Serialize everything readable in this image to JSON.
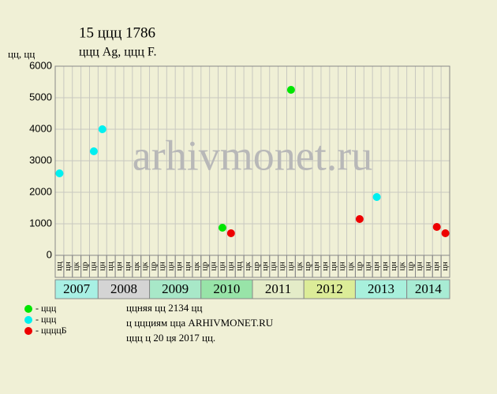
{
  "chart_data": {
    "type": "scatter",
    "title": "15 ццц 1786",
    "subtitle": "ццц Ag, ццц F.",
    "y_label": "цц, цц",
    "watermark": "arhivmonet.ru",
    "notes": [
      "ццняя цц 2134 цц",
      "ц ццциям цца ARHIVMONET.RU",
      "ццц ц 20 ця 2017 цц."
    ],
    "years": [
      {
        "label": "2007",
        "color": "#a8f0e4",
        "months": [
          "цц",
          "цн",
          "цк",
          "цр",
          "цн"
        ]
      },
      {
        "label": "2008",
        "color": "#d4d4d4",
        "months": [
          "цн",
          "цц",
          "цн",
          "цн",
          "цк",
          "цк"
        ]
      },
      {
        "label": "2009",
        "color": "#a8e8c8",
        "months": [
          "цр",
          "цн",
          "цн",
          "цн",
          "цн",
          "цк"
        ]
      },
      {
        "label": "2010",
        "color": "#98e4a8",
        "months": [
          "цр",
          "цн",
          "цн",
          "цн",
          "цц",
          "цк"
        ]
      },
      {
        "label": "2011",
        "color": "#e4ecc8",
        "months": [
          "цр",
          "цн",
          "цн",
          "цн",
          "цн",
          "цк"
        ]
      },
      {
        "label": "2012",
        "color": "#dcec98",
        "months": [
          "цр",
          "цн",
          "цн",
          "цн",
          "цн",
          "цк"
        ]
      },
      {
        "label": "2013",
        "color": "#a8f0dc",
        "months": [
          "цр",
          "цн",
          "цн",
          "цн",
          "цн",
          "цк"
        ]
      },
      {
        "label": "2014",
        "color": "#a8ecd4",
        "months": [
          "цр",
          "цн",
          "цн",
          "цн",
          "цн"
        ]
      }
    ],
    "series": [
      {
        "name": "- ццц",
        "color": "#00e600",
        "values": [
          null,
          null,
          null,
          null,
          null,
          null,
          null,
          null,
          null,
          null,
          null,
          null,
          null,
          null,
          null,
          null,
          null,
          null,
          null,
          875,
          null,
          null,
          null,
          null,
          null,
          null,
          null,
          5250,
          null,
          null,
          null,
          null,
          null,
          null,
          null,
          null,
          null,
          null,
          null,
          null,
          null,
          null,
          null,
          null,
          null,
          null
        ]
      },
      {
        "name": "- ццц",
        "color": "#00f0f0",
        "values": [
          2600,
          null,
          null,
          null,
          3300,
          4000,
          null,
          null,
          null,
          null,
          null,
          null,
          null,
          null,
          null,
          null,
          null,
          null,
          null,
          null,
          null,
          null,
          null,
          null,
          null,
          null,
          null,
          null,
          null,
          null,
          null,
          null,
          null,
          null,
          null,
          null,
          null,
          1850,
          null,
          null,
          null,
          null,
          null,
          null,
          null,
          null
        ]
      },
      {
        "name": "- ццццБ",
        "color": "#ee0000",
        "values": [
          null,
          null,
          null,
          null,
          null,
          null,
          null,
          null,
          null,
          null,
          null,
          null,
          null,
          null,
          null,
          null,
          null,
          null,
          null,
          null,
          700,
          null,
          null,
          null,
          null,
          null,
          null,
          null,
          null,
          null,
          null,
          null,
          null,
          null,
          null,
          1150,
          null,
          null,
          null,
          null,
          null,
          null,
          null,
          null,
          900,
          700
        ]
      }
    ],
    "ylim": [
      0,
      6000
    ],
    "yticks": [
      0,
      1000,
      2000,
      3000,
      4000,
      5000,
      6000
    ],
    "grid": true
  }
}
